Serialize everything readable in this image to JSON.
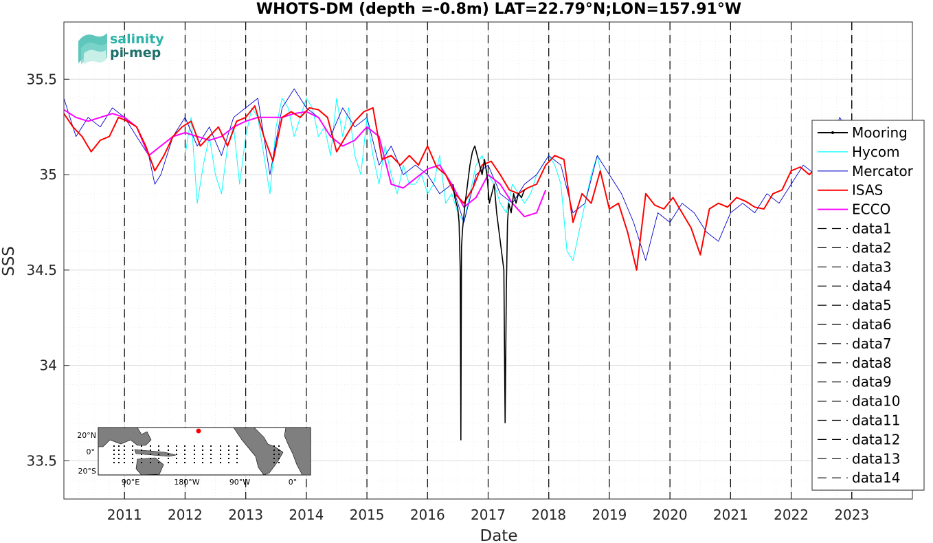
{
  "chart_data": {
    "type": "line",
    "title": "WHOTS-DM (depth =-0.8m) LAT=22.79°N;LON=157.91°W",
    "xlabel": "Date",
    "ylabel": "SSS",
    "xlim": [
      2010.0,
      2024.0
    ],
    "ylim": [
      33.3,
      35.8
    ],
    "x_ticks": [
      2011,
      2012,
      2013,
      2014,
      2015,
      2016,
      2017,
      2018,
      2019,
      2020,
      2021,
      2022,
      2023
    ],
    "x_tick_labels": [
      "2011",
      "2012",
      "2013",
      "2014",
      "2015",
      "2016",
      "2017",
      "2018",
      "2019",
      "2020",
      "2021",
      "2022",
      "2023"
    ],
    "y_ticks": [
      33.5,
      34,
      34.5,
      35,
      35.5
    ],
    "y_tick_labels": [
      "33.5",
      "34",
      "34.5",
      "35",
      "35.5"
    ],
    "grid": true,
    "legend_position": "right",
    "series": [
      {
        "name": "Mooring",
        "color": "#000000",
        "x": [
          2016.42,
          2016.45,
          2016.5,
          2016.52,
          2016.54,
          2016.55,
          2016.56,
          2016.58,
          2016.62,
          2016.66,
          2016.7,
          2016.74,
          2016.78,
          2016.82,
          2016.86,
          2016.9,
          2016.94,
          2016.98,
          2017.02,
          2017.06,
          2017.1,
          2017.14,
          2017.18,
          2017.22,
          2017.26,
          2017.28,
          2017.3,
          2017.32,
          2017.34,
          2017.38,
          2017.42,
          2017.46,
          2017.5,
          2017.55,
          2017.6
        ],
        "y": [
          34.95,
          34.88,
          34.82,
          34.75,
          34.5,
          33.61,
          34.62,
          34.72,
          34.85,
          34.95,
          35.05,
          35.12,
          35.15,
          35.1,
          35.05,
          35.0,
          35.08,
          35.0,
          34.85,
          34.9,
          34.95,
          34.8,
          34.7,
          34.6,
          34.5,
          33.7,
          34.4,
          34.75,
          34.85,
          34.8,
          34.9,
          34.85,
          34.9,
          34.88,
          34.92
        ]
      },
      {
        "name": "Hycom",
        "color": "#00ffff",
        "x": [
          2012.0,
          2012.1,
          2012.2,
          2012.3,
          2012.4,
          2012.5,
          2012.6,
          2012.7,
          2012.8,
          2012.9,
          2013.0,
          2013.1,
          2013.2,
          2013.3,
          2013.4,
          2013.5,
          2013.6,
          2013.7,
          2013.8,
          2013.9,
          2014.0,
          2014.1,
          2014.2,
          2014.3,
          2014.4,
          2014.5,
          2014.6,
          2014.7,
          2014.8,
          2014.9,
          2015.0,
          2015.1,
          2015.2,
          2015.3,
          2015.4,
          2015.5,
          2015.6,
          2015.7,
          2015.8,
          2015.9,
          2016.0,
          2016.1,
          2016.2,
          2016.3,
          2016.4,
          2016.5,
          2016.6,
          2016.7,
          2016.8,
          2016.9,
          2017.0,
          2017.1,
          2017.2,
          2017.3,
          2017.4,
          2017.5,
          2017.6,
          2017.7,
          2017.8,
          2017.9,
          2018.0,
          2018.1,
          2018.2,
          2018.3,
          2018.4,
          2018.5,
          2018.6,
          2018.7,
          2018.8,
          2018.9
        ],
        "y": [
          35.1,
          35.3,
          34.85,
          35.05,
          35.2,
          35.0,
          34.9,
          35.15,
          35.25,
          34.95,
          35.2,
          35.35,
          35.3,
          35.1,
          34.9,
          35.25,
          35.4,
          35.35,
          35.2,
          35.3,
          35.4,
          35.35,
          35.2,
          35.25,
          35.1,
          35.4,
          35.2,
          35.35,
          35.1,
          35.0,
          35.3,
          35.1,
          34.95,
          35.15,
          35.0,
          34.9,
          35.05,
          34.95,
          34.95,
          35.0,
          34.9,
          34.95,
          35.1,
          34.85,
          34.9,
          34.8,
          34.75,
          34.9,
          35.05,
          35.1,
          35.0,
          34.95,
          34.85,
          34.8,
          34.95,
          34.9,
          34.85,
          34.9,
          35.0,
          35.05,
          35.1,
          35.05,
          34.95,
          34.6,
          34.55,
          34.7,
          34.85,
          35.0,
          35.1,
          34.95
        ]
      },
      {
        "name": "Mercator",
        "color": "#0000cd",
        "x": [
          2010.0,
          2010.2,
          2010.4,
          2010.6,
          2010.8,
          2011.0,
          2011.2,
          2011.4,
          2011.5,
          2011.6,
          2011.8,
          2012.0,
          2012.2,
          2012.4,
          2012.6,
          2012.8,
          2013.0,
          2013.2,
          2013.4,
          2013.6,
          2013.8,
          2014.0,
          2014.2,
          2014.4,
          2014.6,
          2014.8,
          2015.0,
          2015.2,
          2015.4,
          2015.6,
          2015.8,
          2016.0,
          2016.2,
          2016.4,
          2016.6,
          2016.8,
          2017.0,
          2017.2,
          2017.4,
          2017.6,
          2017.8,
          2018.0,
          2018.2,
          2018.4,
          2018.6,
          2018.8,
          2019.0,
          2019.2,
          2019.4,
          2019.6,
          2019.8,
          2020.0,
          2020.2,
          2020.4,
          2020.6,
          2020.8,
          2021.0,
          2021.2,
          2021.4,
          2021.6,
          2021.8,
          2022.0,
          2022.2,
          2022.4,
          2022.6,
          2022.8,
          2023.0,
          2023.2
        ],
        "y": [
          35.4,
          35.2,
          35.3,
          35.25,
          35.35,
          35.3,
          35.2,
          35.1,
          34.95,
          35.0,
          35.2,
          35.3,
          35.15,
          35.25,
          35.1,
          35.3,
          35.35,
          35.4,
          35.0,
          35.35,
          35.45,
          35.35,
          35.3,
          35.2,
          35.35,
          35.25,
          35.3,
          35.05,
          35.15,
          35.0,
          35.05,
          35.0,
          34.9,
          34.95,
          34.75,
          35.0,
          35.05,
          34.9,
          34.85,
          34.95,
          35.0,
          35.1,
          35.05,
          34.8,
          34.85,
          35.1,
          35.0,
          34.9,
          34.75,
          34.55,
          34.8,
          34.75,
          34.85,
          34.8,
          34.7,
          34.65,
          34.8,
          34.85,
          34.8,
          34.9,
          34.85,
          34.95,
          35.05,
          35.0,
          35.1,
          35.3,
          35.2,
          35.25
        ]
      },
      {
        "name": "ISAS",
        "color": "#ff0000",
        "x": [
          2010.0,
          2010.15,
          2010.3,
          2010.45,
          2010.6,
          2010.75,
          2010.9,
          2011.05,
          2011.2,
          2011.35,
          2011.5,
          2011.65,
          2011.8,
          2011.95,
          2012.1,
          2012.25,
          2012.4,
          2012.55,
          2012.7,
          2012.85,
          2013.0,
          2013.15,
          2013.3,
          2013.45,
          2013.6,
          2013.75,
          2013.9,
          2014.05,
          2014.2,
          2014.35,
          2014.5,
          2014.65,
          2014.8,
          2014.95,
          2015.1,
          2015.25,
          2015.4,
          2015.55,
          2015.7,
          2015.85,
          2016.0,
          2016.15,
          2016.3,
          2016.45,
          2016.6,
          2016.75,
          2016.9,
          2017.05,
          2017.2,
          2017.35,
          2017.5,
          2017.65,
          2017.8,
          2017.95,
          2018.1,
          2018.25,
          2018.4,
          2018.55,
          2018.7,
          2018.85,
          2019.0,
          2019.15,
          2019.3,
          2019.45,
          2019.6,
          2019.75,
          2019.9,
          2020.05,
          2020.2,
          2020.35,
          2020.5,
          2020.65,
          2020.8,
          2020.95,
          2021.1,
          2021.25,
          2021.4,
          2021.55,
          2021.7,
          2021.85,
          2022.0,
          2022.15,
          2022.3,
          2022.45,
          2022.6,
          2022.75,
          2022.9
        ],
        "y": [
          35.32,
          35.25,
          35.2,
          35.12,
          35.18,
          35.2,
          35.3,
          35.28,
          35.25,
          35.15,
          35.02,
          35.1,
          35.2,
          35.25,
          35.28,
          35.15,
          35.2,
          35.25,
          35.15,
          35.28,
          35.3,
          35.36,
          35.2,
          35.07,
          35.3,
          35.33,
          35.3,
          35.35,
          35.34,
          35.3,
          35.12,
          35.2,
          35.28,
          35.33,
          35.35,
          35.08,
          35.1,
          35.05,
          35.1,
          35.05,
          35.15,
          35.04,
          35.0,
          34.9,
          34.85,
          34.93,
          35.05,
          35.07,
          35.0,
          34.92,
          34.9,
          34.93,
          34.95,
          35.05,
          35.1,
          35.08,
          34.75,
          34.9,
          34.85,
          35.02,
          34.82,
          34.85,
          34.7,
          34.5,
          34.9,
          34.84,
          34.82,
          34.88,
          34.8,
          34.72,
          34.58,
          34.82,
          34.85,
          34.83,
          34.88,
          34.86,
          34.83,
          34.82,
          34.9,
          34.92,
          35.02,
          35.04,
          35.0,
          35.05,
          35.2,
          35.28,
          35.27
        ]
      },
      {
        "name": "ECCO",
        "color": "#ff00ff",
        "x": [
          2010.0,
          2010.2,
          2010.4,
          2010.6,
          2010.8,
          2011.0,
          2011.2,
          2011.4,
          2011.6,
          2011.8,
          2012.0,
          2012.2,
          2012.4,
          2012.6,
          2012.8,
          2013.0,
          2013.2,
          2013.4,
          2013.6,
          2013.8,
          2014.0,
          2014.2,
          2014.4,
          2014.6,
          2014.8,
          2015.0,
          2015.2,
          2015.4,
          2015.6,
          2015.8,
          2016.0,
          2016.2,
          2016.4,
          2016.6,
          2016.8,
          2017.0,
          2017.2,
          2017.4,
          2017.6,
          2017.8,
          2017.95
        ],
        "y": [
          35.34,
          35.3,
          35.28,
          35.3,
          35.32,
          35.3,
          35.25,
          35.1,
          35.15,
          35.2,
          35.22,
          35.2,
          35.18,
          35.2,
          35.25,
          35.28,
          35.3,
          35.3,
          35.3,
          35.32,
          35.33,
          35.3,
          35.2,
          35.15,
          35.18,
          35.25,
          35.2,
          34.95,
          34.93,
          34.98,
          35.03,
          35.05,
          34.95,
          34.83,
          34.88,
          35.0,
          34.95,
          34.85,
          34.78,
          34.8,
          34.92
        ]
      }
    ],
    "vertical_lines": [
      {
        "name": "data1",
        "x": 2011.0
      },
      {
        "name": "data2",
        "x": 2012.0
      },
      {
        "name": "data3",
        "x": 2013.0
      },
      {
        "name": "data4",
        "x": 2014.0
      },
      {
        "name": "data5",
        "x": 2015.0
      },
      {
        "name": "data6",
        "x": 2016.0
      },
      {
        "name": "data7",
        "x": 2017.0
      },
      {
        "name": "data8",
        "x": 2018.0
      },
      {
        "name": "data9",
        "x": 2019.0
      },
      {
        "name": "data10",
        "x": 2020.0
      },
      {
        "name": "data11",
        "x": 2021.0
      },
      {
        "name": "data12",
        "x": 2022.0
      },
      {
        "name": "data13",
        "x": 2023.0
      },
      {
        "name": "data14",
        "x": 2023.0
      }
    ],
    "legend": [
      "Mooring",
      "Hycom",
      "Mercator",
      "ISAS",
      "ECCO",
      "data1",
      "data2",
      "data3",
      "data4",
      "data5",
      "data6",
      "data7",
      "data8",
      "data9",
      "data10",
      "data11",
      "data12",
      "data13",
      "data14"
    ]
  },
  "logo": {
    "line1": "salinity",
    "line2": "pi-mep",
    "line1_color": "#2ab3a6",
    "line2_color": "#1d6f6a"
  },
  "inset_map": {
    "lat_labels": [
      "20°N",
      "0°",
      "20°S"
    ],
    "lon_labels": [
      "90°E",
      "180°W",
      "90°W",
      "0°"
    ]
  }
}
